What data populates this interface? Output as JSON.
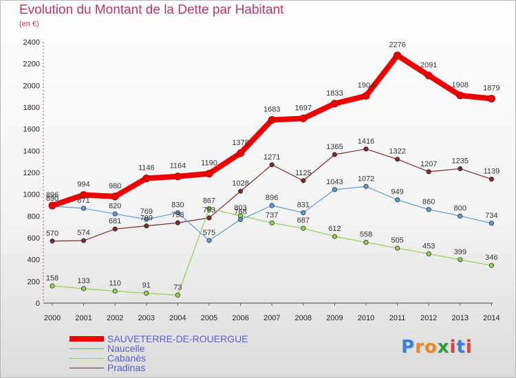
{
  "title": "Evolution du Montant de la Dette par Habitant",
  "subtitle": "(en €)",
  "logo": "Proxiti",
  "chart_data": {
    "type": "line",
    "title": "Evolution du Montant de la Dette par Habitant",
    "subtitle": "(en €)",
    "categories": [
      "2000",
      "2001",
      "2002",
      "2003",
      "2004",
      "2005",
      "2006",
      "2007",
      "2008",
      "2009",
      "2010",
      "2011",
      "2012",
      "2013",
      "2014"
    ],
    "y_ticks": [
      "0",
      "200",
      "400",
      "600",
      "800",
      "1000",
      "1200",
      "1400",
      "1600",
      "1800",
      "2000",
      "2200",
      "2400"
    ],
    "ylim": [
      0,
      2400
    ],
    "grid": false,
    "legend_position": "bottom-left",
    "series": [
      {
        "name": "SAUVETERRE-DE-ROUERGUE",
        "color": "#ee0000",
        "values": [
          896,
          994,
          980,
          1146,
          1164,
          1190,
          1378,
          1683,
          1697,
          1833,
          1904,
          2276,
          2091,
          1908,
          1879
        ]
      },
      {
        "name": "Naucelle",
        "color": "#5b9bd5",
        "values": [
          890,
          871,
          820,
          769,
          830,
          575,
          768,
          896,
          831,
          1043,
          1072,
          949,
          860,
          800,
          734
        ]
      },
      {
        "name": "Cabanès",
        "color": "#92d050",
        "values": [
          158,
          133,
          110,
          91,
          73,
          867,
          803,
          737,
          687,
          612,
          558,
          505,
          453,
          399,
          346
        ]
      },
      {
        "name": "Pradinas",
        "color": "#7b2a2a",
        "values": [
          570,
          574,
          681,
          709,
          738,
          783,
          1028,
          1271,
          1125,
          1365,
          1416,
          1322,
          1207,
          1235,
          1139
        ]
      }
    ]
  }
}
